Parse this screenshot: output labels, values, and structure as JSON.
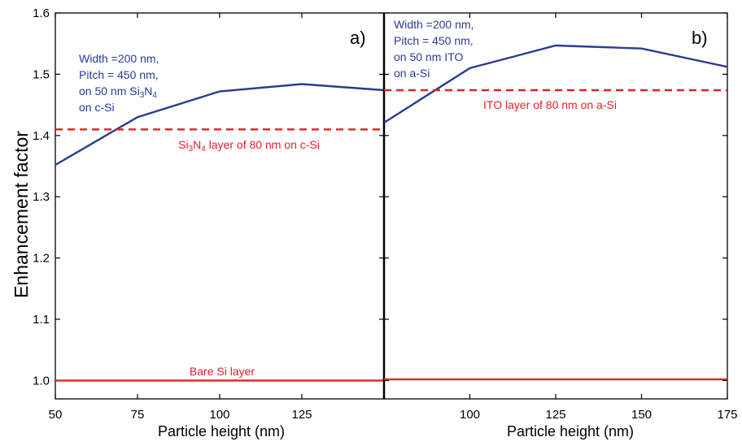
{
  "figure": {
    "ylabel": "Enhancement factor"
  },
  "colors": {
    "blue": "#2b3a93",
    "red": "#e41e26",
    "axis": "#000000"
  },
  "chart_data": [
    {
      "type": "line",
      "panel_label": "a)",
      "xlabel": "Particle height (nm)",
      "ylabel": "Enhancement factor",
      "xlim": [
        50,
        150
      ],
      "ylim": [
        0.97,
        1.6
      ],
      "x_ticks": [
        50,
        75,
        100,
        125
      ],
      "y_ticks": [
        1.0,
        1.1,
        1.2,
        1.3,
        1.4,
        1.5,
        1.6
      ],
      "y_tick_labels": [
        "1.0",
        "1.1",
        "1.2",
        "1.3",
        "1.4",
        "1.5",
        "1.6"
      ],
      "grid": false,
      "series": [
        {
          "style": "solid",
          "color": "#2b3a93",
          "x": [
            50,
            75,
            100,
            125,
            150
          ],
          "y": [
            1.352,
            1.43,
            1.472,
            1.484,
            1.474
          ]
        },
        {
          "style": "dashed",
          "color": "#e41e26",
          "x": [
            50,
            150
          ],
          "y": [
            1.41,
            1.41
          ]
        },
        {
          "style": "solid",
          "color": "#e41e26",
          "x": [
            50,
            150
          ],
          "y": [
            1.0,
            1.0
          ]
        }
      ],
      "annotations": {
        "blue_lines": [
          "Width =200 nm,",
          "Pitch = 450 nm,",
          "on 50 nm Si3N4",
          "on c-Si"
        ],
        "dashed_label": "Si3N4 layer of 80 nm on c-Si",
        "bare_label": "Bare Si layer"
      }
    },
    {
      "type": "line",
      "panel_label": "b)",
      "xlabel": "Particle height (nm)",
      "xlim": [
        75,
        175
      ],
      "ylim": [
        0.97,
        1.6
      ],
      "x_ticks": [
        100,
        125,
        150,
        175
      ],
      "grid": false,
      "series": [
        {
          "style": "solid",
          "color": "#2b3a93",
          "x": [
            75,
            100,
            125,
            150,
            175
          ],
          "y": [
            1.421,
            1.51,
            1.547,
            1.542,
            1.512
          ]
        },
        {
          "style": "dashed",
          "color": "#e41e26",
          "x": [
            75,
            175
          ],
          "y": [
            1.474,
            1.474
          ]
        },
        {
          "style": "solid",
          "color": "#e41e26",
          "x": [
            75,
            175
          ],
          "y": [
            1.002,
            1.002
          ]
        }
      ],
      "annotations": {
        "blue_lines": [
          "Width =200 nm,",
          "Pitch = 450 nm,",
          "on 50 nm ITO",
          "on a-Si"
        ],
        "dashed_label": "ITO layer of 80 nm on a-Si"
      }
    }
  ]
}
